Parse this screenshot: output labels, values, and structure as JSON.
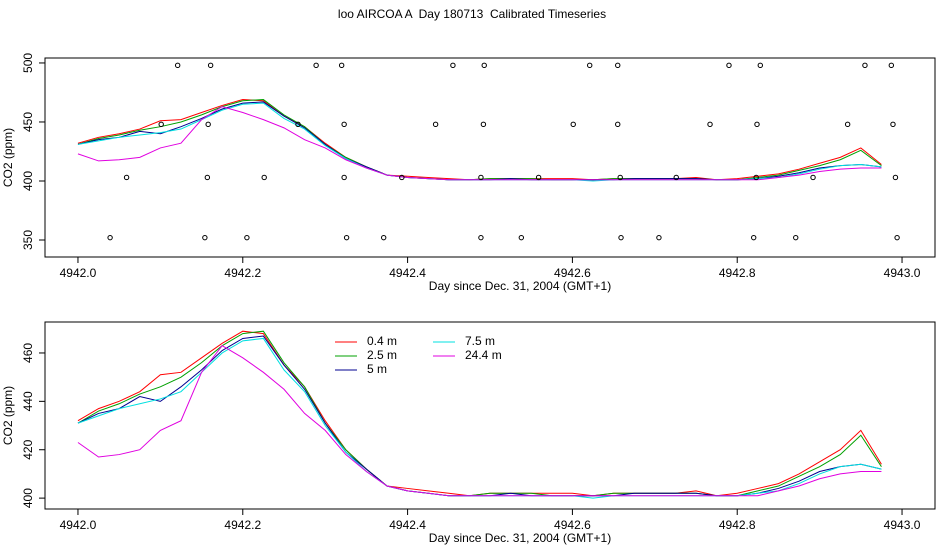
{
  "chart_data": [
    {
      "type": "line",
      "title": "loo AIRCOA A  Day 180713  Calibrated Timeseries",
      "xlabel": "Day since Dec. 31, 2004 (GMT+1)",
      "ylabel": "CO2 (ppm)",
      "xlim": [
        4941.96,
        4943.04
      ],
      "ylim": [
        335.6,
        504.2
      ],
      "xticks": [
        {
          "value": 4942.0,
          "label": "4942.0"
        },
        {
          "value": 4942.2,
          "label": "4942.2"
        },
        {
          "value": 4942.4,
          "label": "4942.4"
        },
        {
          "value": 4942.6,
          "label": "4942.6"
        },
        {
          "value": 4942.8,
          "label": "4942.8"
        },
        {
          "value": 4943.0,
          "label": "4943.0"
        }
      ],
      "yticks": [
        350,
        400,
        450,
        500
      ],
      "legend": false,
      "x": [
        4942,
        4942.025,
        4942.05,
        4942.075,
        4942.1,
        4942.125,
        4942.15,
        4942.175,
        4942.2,
        4942.225,
        4942.25,
        4942.275,
        4942.3,
        4942.325,
        4942.35,
        4942.375,
        4942.4,
        4942.425,
        4942.45,
        4942.475,
        4942.5,
        4942.525,
        4942.55,
        4942.575,
        4942.6,
        4942.625,
        4942.65,
        4942.675,
        4942.7,
        4942.725,
        4942.75,
        4942.775,
        4942.8,
        4942.825,
        4942.85,
        4942.875,
        4942.9,
        4942.925,
        4942.95,
        4942.975
      ],
      "series": [
        {
          "color": "#ff0000",
          "values": [
            432,
            437,
            440,
            444,
            451,
            452,
            458,
            464,
            469,
            468,
            455,
            446,
            432,
            420,
            412,
            405,
            404,
            403,
            402,
            401,
            402,
            402,
            402,
            402,
            402,
            401,
            402,
            402,
            402,
            402,
            403,
            401,
            402,
            404,
            406,
            410,
            415,
            420,
            428,
            414
          ]
        },
        {
          "color": "#00a000",
          "values": [
            431,
            436,
            439,
            443,
            446,
            450,
            456,
            463,
            468,
            469,
            456,
            446,
            431,
            420,
            412,
            405,
            403,
            402,
            401,
            401,
            402,
            402,
            402,
            401,
            401,
            401,
            402,
            402,
            402,
            402,
            402,
            401,
            401,
            403,
            405,
            409,
            413,
            418,
            426,
            413
          ]
        },
        {
          "color": "#000090",
          "values": [
            431,
            435,
            437,
            442,
            440,
            446,
            453,
            461,
            466,
            467,
            455,
            445,
            431,
            419,
            412,
            405,
            403,
            402,
            401,
            401,
            401,
            402,
            401,
            401,
            401,
            401,
            401,
            402,
            402,
            402,
            402,
            401,
            401,
            402,
            404,
            407,
            411,
            413,
            414,
            412
          ]
        },
        {
          "color": "#00e0e0",
          "values": [
            431,
            434,
            437,
            439,
            441,
            444,
            452,
            460,
            465,
            466,
            453,
            444,
            430,
            419,
            411,
            405,
            403,
            402,
            401,
            401,
            401,
            401,
            401,
            401,
            401,
            400,
            401,
            401,
            401,
            401,
            401,
            401,
            401,
            402,
            403,
            406,
            410,
            413,
            414,
            412
          ]
        },
        {
          "color": "#e000e0",
          "values": [
            423,
            417,
            418,
            420,
            428,
            432,
            452,
            463,
            458,
            452,
            445,
            435,
            428,
            418,
            411,
            405,
            403,
            402,
            401,
            401,
            401,
            401,
            401,
            401,
            401,
            401,
            401,
            401,
            401,
            401,
            401,
            401,
            401,
            401,
            403,
            405,
            408,
            410,
            411,
            411
          ]
        }
      ],
      "points": {
        "color": "#000000",
        "x": [
          4942.121,
          4942.161,
          4942.289,
          4942.32,
          4942.455,
          4942.493,
          4942.621,
          4942.655,
          4942.79,
          4942.828,
          4942.955,
          4942.987,
          4942.101,
          4942.158,
          4942.267,
          4942.323,
          4942.434,
          4942.492,
          4942.601,
          4942.655,
          4942.767,
          4942.824,
          4942.934,
          4942.989,
          4942.059,
          4942.157,
          4942.226,
          4942.323,
          4942.393,
          4942.489,
          4942.559,
          4942.658,
          4942.726,
          4942.823,
          4942.892,
          4942.992,
          4942.039,
          4942.154,
          4942.205,
          4942.326,
          4942.371,
          4942.489,
          4942.538,
          4942.659,
          4942.705,
          4942.82,
          4942.871,
          4942.994
        ],
        "values": [
          498,
          498,
          498,
          498,
          498,
          498,
          498,
          498,
          498,
          498,
          498,
          498,
          448,
          448,
          448,
          448,
          448,
          448,
          448,
          448,
          448,
          448,
          448,
          448,
          403,
          403,
          403,
          403,
          403,
          403,
          403,
          403,
          403,
          403,
          403,
          403,
          352,
          352,
          352,
          352,
          352,
          352,
          352,
          352,
          352,
          352,
          352,
          352
        ]
      }
    },
    {
      "type": "line",
      "xlabel": "Day since Dec. 31, 2004 (GMT+1)",
      "ylabel": "CO2 (ppm)",
      "xlim": [
        4941.96,
        4943.04
      ],
      "ylim": [
        395.5,
        472.8
      ],
      "xticks": [
        {
          "value": 4942.0,
          "label": "4942.0"
        },
        {
          "value": 4942.2,
          "label": "4942.2"
        },
        {
          "value": 4942.4,
          "label": "4942.4"
        },
        {
          "value": 4942.6,
          "label": "4942.6"
        },
        {
          "value": 4942.8,
          "label": "4942.8"
        },
        {
          "value": 4943.0,
          "label": "4943.0"
        }
      ],
      "yticks": [
        400,
        420,
        440,
        460
      ],
      "legend": true,
      "x": [
        4942,
        4942.025,
        4942.05,
        4942.075,
        4942.1,
        4942.125,
        4942.15,
        4942.175,
        4942.2,
        4942.225,
        4942.25,
        4942.275,
        4942.3,
        4942.325,
        4942.35,
        4942.375,
        4942.4,
        4942.425,
        4942.45,
        4942.475,
        4942.5,
        4942.525,
        4942.55,
        4942.575,
        4942.6,
        4942.625,
        4942.65,
        4942.675,
        4942.7,
        4942.725,
        4942.75,
        4942.775,
        4942.8,
        4942.825,
        4942.85,
        4942.875,
        4942.9,
        4942.925,
        4942.95,
        4942.975
      ],
      "series": [
        {
          "name": "0.4 m",
          "color": "#ff0000",
          "values": [
            432,
            437,
            440,
            444,
            451,
            452,
            458,
            464,
            469,
            468,
            455,
            446,
            432,
            420,
            412,
            405,
            404,
            403,
            402,
            401,
            402,
            402,
            402,
            402,
            402,
            401,
            402,
            402,
            402,
            402,
            403,
            401,
            402,
            404,
            406,
            410,
            415,
            420,
            428,
            414
          ]
        },
        {
          "name": "2.5 m",
          "color": "#00a000",
          "values": [
            431,
            436,
            439,
            443,
            446,
            450,
            456,
            463,
            468,
            469,
            456,
            446,
            431,
            420,
            412,
            405,
            403,
            402,
            401,
            401,
            402,
            402,
            402,
            401,
            401,
            401,
            402,
            402,
            402,
            402,
            402,
            401,
            401,
            403,
            405,
            409,
            413,
            418,
            426,
            413
          ]
        },
        {
          "name": "5 m",
          "color": "#000090",
          "values": [
            431,
            435,
            437,
            442,
            440,
            446,
            453,
            461,
            466,
            467,
            455,
            445,
            431,
            419,
            412,
            405,
            403,
            402,
            401,
            401,
            401,
            402,
            401,
            401,
            401,
            401,
            401,
            402,
            402,
            402,
            402,
            401,
            401,
            402,
            404,
            407,
            411,
            413,
            414,
            412
          ]
        },
        {
          "name": "7.5 m",
          "color": "#00e0e0",
          "values": [
            431,
            434,
            437,
            439,
            441,
            444,
            452,
            460,
            465,
            466,
            453,
            444,
            430,
            419,
            411,
            405,
            403,
            402,
            401,
            401,
            401,
            401,
            401,
            401,
            401,
            400,
            401,
            401,
            401,
            401,
            401,
            401,
            401,
            402,
            403,
            406,
            410,
            413,
            414,
            412
          ]
        },
        {
          "name": "24.4 m",
          "color": "#e000e0",
          "values": [
            423,
            417,
            418,
            420,
            428,
            432,
            452,
            463,
            458,
            452,
            445,
            435,
            428,
            418,
            411,
            405,
            403,
            402,
            401,
            401,
            401,
            401,
            401,
            401,
            401,
            401,
            401,
            401,
            401,
            401,
            401,
            401,
            401,
            401,
            403,
            405,
            408,
            410,
            411,
            411
          ]
        }
      ]
    }
  ]
}
